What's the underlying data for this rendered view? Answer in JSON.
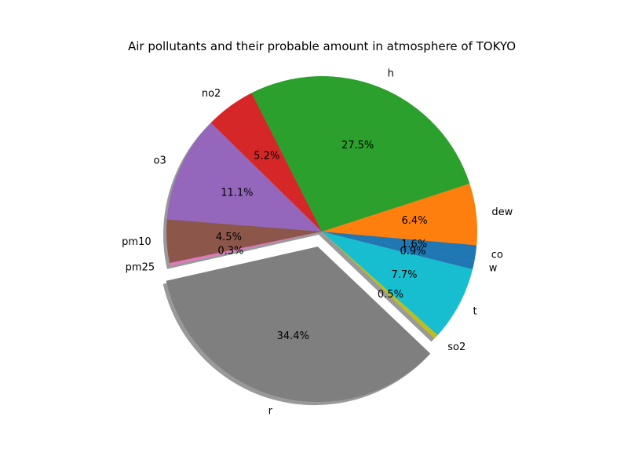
{
  "chart_data": {
    "type": "pie",
    "title": "Air pollutants and their probable amount in atmosphere of TOKYO",
    "slices": [
      {
        "label": "co",
        "value": 1.6,
        "pct_label": "1.6%",
        "color": "#1f77b4"
      },
      {
        "label": "dew",
        "value": 6.4,
        "pct_label": "6.4%",
        "color": "#ff7f0e"
      },
      {
        "label": "h",
        "value": 27.5,
        "pct_label": "27.5%",
        "color": "#2ca02c"
      },
      {
        "label": "no2",
        "value": 5.2,
        "pct_label": "5.2%",
        "color": "#d62728"
      },
      {
        "label": "o3",
        "value": 11.1,
        "pct_label": "11.1%",
        "color": "#9467bd"
      },
      {
        "label": "pm10",
        "value": 4.5,
        "pct_label": "4.5%",
        "color": "#8c564b"
      },
      {
        "label": "pm25",
        "value": 0.3,
        "pct_label": "0.3%",
        "color": "#e377c2"
      },
      {
        "label": "r",
        "value": 34.4,
        "pct_label": "34.4%",
        "color": "#7f7f7f",
        "exploded": true
      },
      {
        "label": "so2",
        "value": 0.5,
        "pct_label": "0.5%",
        "color": "#bcbd22"
      },
      {
        "label": "t",
        "value": 7.7,
        "pct_label": "7.7%",
        "color": "#17becf"
      },
      {
        "label": "w",
        "value": 0.9,
        "pct_label": "0.9%",
        "color": "#1f77b4"
      }
    ],
    "shadow": true,
    "direction": "counterclockwise"
  }
}
